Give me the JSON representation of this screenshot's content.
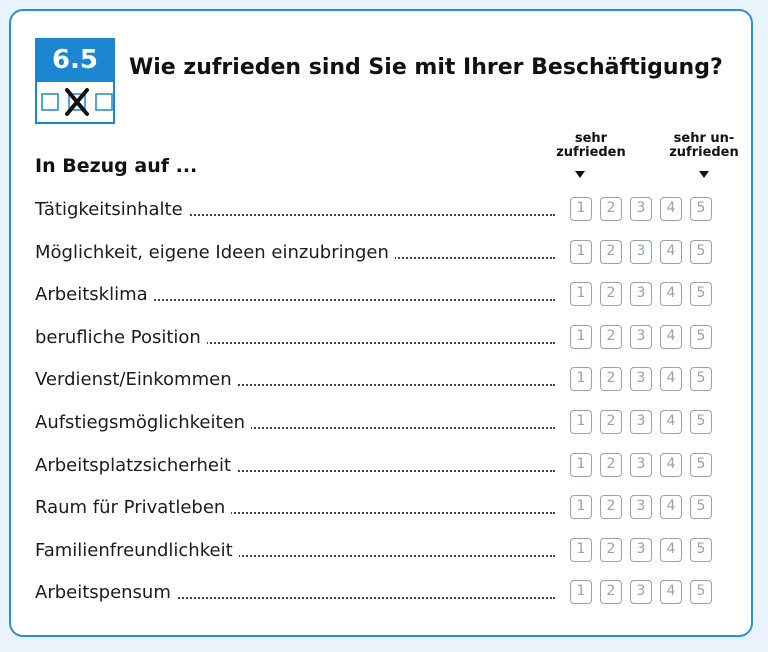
{
  "question": {
    "number": "6.5",
    "title": "Wie zufrieden Sind Sie mit Ihrer Beschäftigung?",
    "title_exact": "Wie zufrieden sind Sie mit Ihrer Beschäftigung?"
  },
  "subheading": "In Bezug auf ...",
  "scale": {
    "left_label": "sehr zufrieden",
    "left_line1": "sehr",
    "left_line2": "zufrieden",
    "right_line1": "sehr un-",
    "right_line2": "zufrieden",
    "options": [
      "1",
      "2",
      "3",
      "4",
      "5"
    ]
  },
  "items": [
    "Tätigkeitsinhalte",
    "Möglichkeit, eigene Ideen einzubringen",
    "Arbeitsklima",
    "berufliche Position",
    "Verdienst/Einkommen",
    "Aufstiegsmöglichkeiten",
    "Arbeitsplatzsicherheit",
    "Raum für Privatleben",
    "Familienfreundlichkeit",
    "Arbeitspensum"
  ],
  "colors": {
    "accent": "#1d86d1",
    "border": "#2b8fd6",
    "background": "#e8f3fb"
  }
}
